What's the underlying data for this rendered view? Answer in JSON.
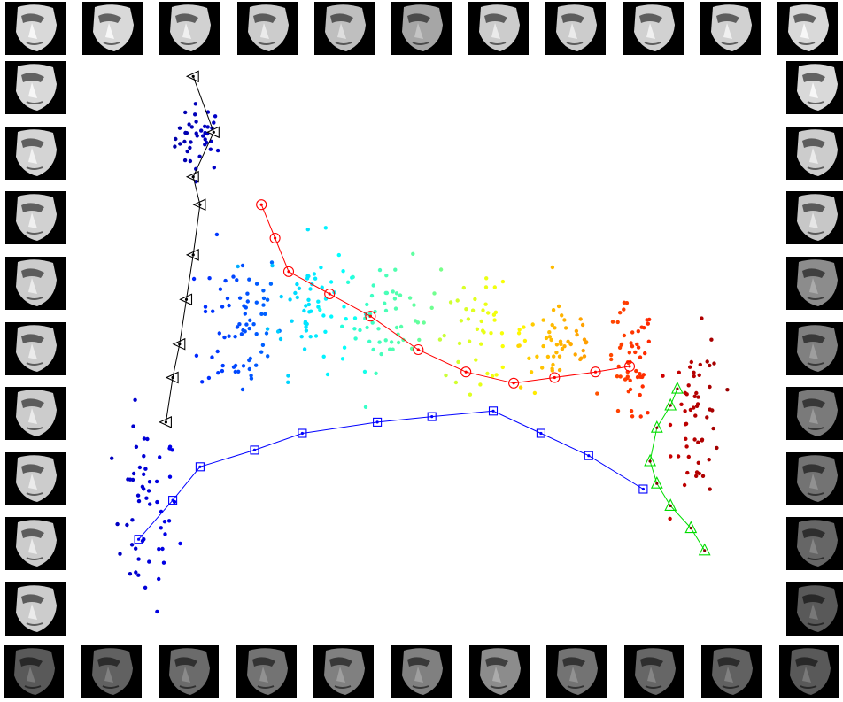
{
  "chart_data": {
    "type": "scatter",
    "title": "",
    "xlabel": "",
    "ylabel": "",
    "grid": false,
    "legend": "none",
    "axes_visible": false,
    "xlim": [
      0,
      100
    ],
    "ylim": [
      0,
      100
    ],
    "colormap": "jet",
    "colormap_colors": [
      "#00008f",
      "#0000ff",
      "#0080ff",
      "#00ffff",
      "#80ff80",
      "#ffff00",
      "#ff8000",
      "#ff0000",
      "#800000"
    ],
    "point_clusters": [
      {
        "name": "",
        "center": [
          17,
          88
        ],
        "spread": [
          3,
          5
        ],
        "count": 40,
        "color_t": 0.05
      },
      {
        "name": "",
        "center": [
          9,
          20
        ],
        "spread": [
          4,
          14
        ],
        "count": 55,
        "color_t": 0.08
      },
      {
        "name": "",
        "center": [
          23,
          55
        ],
        "spread": [
          5,
          12
        ],
        "count": 70,
        "color_t": 0.2
      },
      {
        "name": "",
        "center": [
          33,
          58
        ],
        "spread": [
          5,
          10
        ],
        "count": 60,
        "color_t": 0.35
      },
      {
        "name": "",
        "center": [
          45,
          56
        ],
        "spread": [
          6,
          8
        ],
        "count": 55,
        "color_t": 0.45
      },
      {
        "name": "",
        "center": [
          58,
          53
        ],
        "spread": [
          6,
          7
        ],
        "count": 45,
        "color_t": 0.6
      },
      {
        "name": "",
        "center": [
          70,
          51
        ],
        "spread": [
          5,
          7
        ],
        "count": 50,
        "color_t": 0.7
      },
      {
        "name": "",
        "center": [
          80,
          47
        ],
        "spread": [
          3,
          9
        ],
        "count": 55,
        "color_t": 0.82
      },
      {
        "name": "",
        "center": [
          90,
          38
        ],
        "spread": [
          3,
          12
        ],
        "count": 55,
        "color_t": 0.95
      }
    ],
    "series": [
      {
        "name": "",
        "color": "#000000",
        "marker": "triangle-left",
        "x": [
          16,
          19,
          16,
          17,
          16,
          15,
          14,
          13,
          12
        ],
        "y": [
          99,
          89,
          81,
          76,
          67,
          59,
          51,
          45,
          37
        ]
      },
      {
        "name": "",
        "color": "#ff0000",
        "marker": "circle",
        "x": [
          26,
          28,
          30,
          36,
          42,
          49,
          56,
          63,
          69,
          75,
          80
        ],
        "y": [
          76,
          70,
          64,
          60,
          56,
          50,
          46,
          44,
          45,
          46,
          47
        ]
      },
      {
        "name": "",
        "color": "#0000ff",
        "marker": "square",
        "x": [
          8,
          13,
          17,
          25,
          32,
          43,
          51,
          60,
          67,
          74,
          82
        ],
        "y": [
          16,
          23,
          29,
          32,
          35,
          37,
          38,
          39,
          35,
          31,
          25
        ]
      },
      {
        "name": "",
        "color": "#00dd00",
        "marker": "triangle-up",
        "x": [
          87,
          86,
          84,
          83,
          84,
          86,
          89,
          91
        ],
        "y": [
          43,
          40,
          36,
          30,
          26,
          22,
          18,
          14
        ]
      }
    ]
  },
  "thumbnails": {
    "top_row_count": 11,
    "bottom_row_count": 11,
    "left_column_count": 9,
    "right_column_count": 9,
    "brightness_top": [
      0.85,
      0.85,
      0.82,
      0.8,
      0.75,
      0.65,
      0.8,
      0.8,
      0.82,
      0.82,
      0.85
    ],
    "brightness_left": [
      0.85,
      0.83,
      0.82,
      0.8,
      0.8,
      0.8,
      0.8,
      0.8,
      0.8
    ],
    "brightness_right": [
      0.85,
      0.8,
      0.78,
      0.55,
      0.5,
      0.48,
      0.45,
      0.4,
      0.35
    ],
    "brightness_bottom": [
      0.35,
      0.38,
      0.42,
      0.45,
      0.5,
      0.5,
      0.55,
      0.45,
      0.4,
      0.38,
      0.35
    ]
  }
}
